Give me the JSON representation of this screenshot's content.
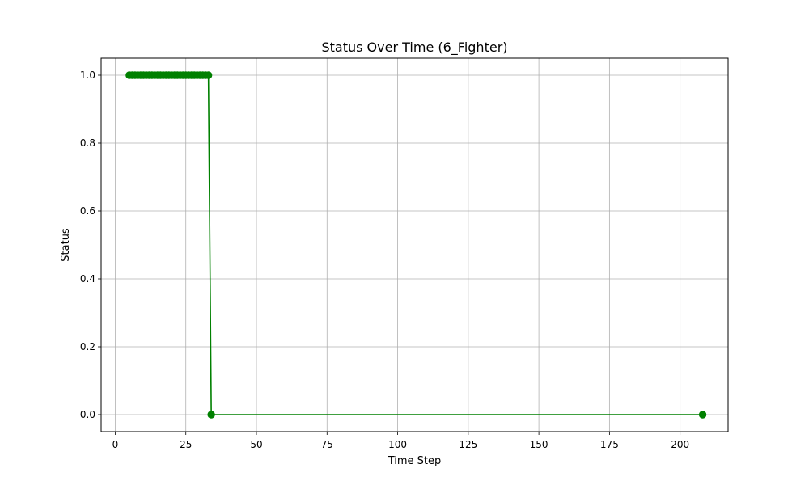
{
  "chart_data": {
    "type": "line",
    "title": "Status Over Time (6_Fighter)",
    "xlabel": "Time Step",
    "ylabel": "Status",
    "xlim": [
      -5,
      217
    ],
    "ylim": [
      -0.05,
      1.05
    ],
    "xticks": [
      0,
      25,
      50,
      75,
      100,
      125,
      150,
      175,
      200
    ],
    "yticks": [
      0.0,
      0.2,
      0.4,
      0.6,
      0.8,
      1.0
    ],
    "xtick_labels": [
      "0",
      "25",
      "50",
      "75",
      "100",
      "125",
      "150",
      "175",
      "200"
    ],
    "ytick_labels": [
      "0.0",
      "0.2",
      "0.4",
      "0.6",
      "0.8",
      "1.0"
    ],
    "grid": true,
    "series": [
      {
        "color": "#008000",
        "marker": "circle",
        "x": [
          5,
          6,
          7,
          8,
          9,
          10,
          11,
          12,
          13,
          14,
          15,
          16,
          17,
          18,
          19,
          20,
          21,
          22,
          23,
          24,
          25,
          26,
          27,
          28,
          29,
          30,
          31,
          32,
          33,
          34,
          208
        ],
        "y": [
          1,
          1,
          1,
          1,
          1,
          1,
          1,
          1,
          1,
          1,
          1,
          1,
          1,
          1,
          1,
          1,
          1,
          1,
          1,
          1,
          1,
          1,
          1,
          1,
          1,
          1,
          1,
          1,
          1,
          0,
          0
        ]
      }
    ]
  }
}
